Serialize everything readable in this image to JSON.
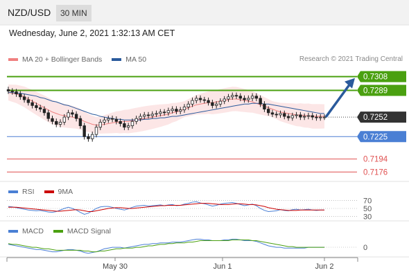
{
  "header": {
    "symbol": "NZD/USD",
    "timeframe": "30 MIN"
  },
  "datetime": "Wednesday, June 2, 2021 1:32:13 AM CET",
  "credit": "Research © 2021 Trading Central",
  "legend_main": [
    {
      "label": "MA 20 + Bollinger Bands",
      "color": "#f08080"
    },
    {
      "label": "MA 50",
      "color": "#2a5a9c"
    }
  ],
  "legend_rsi": [
    {
      "label": "RSI",
      "color": "#4a7fd4"
    },
    {
      "label": "9MA",
      "color": "#cc0000"
    }
  ],
  "legend_macd": [
    {
      "label": "MACD",
      "color": "#4a7fd4"
    },
    {
      "label": "MACD Signal",
      "color": "#4aa010"
    }
  ],
  "colors": {
    "resistance": "#4aa010",
    "support": "#4a7fd4",
    "lower": "#e05050",
    "price": "#333333",
    "arrow": "#2a5a9c"
  },
  "chart_data": {
    "type": "candlestick",
    "x_ticks": [
      "May 30",
      "Jun 1",
      "Jun 2"
    ],
    "price_levels": [
      {
        "value": 0.7308,
        "label": "0.7308",
        "kind": "resistance"
      },
      {
        "value": 0.7289,
        "label": "0.7289",
        "kind": "resistance"
      },
      {
        "value": 0.7252,
        "label": "0.7252",
        "kind": "current"
      },
      {
        "value": 0.7225,
        "label": "0.7225",
        "kind": "pivot"
      },
      {
        "value": 0.7194,
        "label": "0.7194",
        "kind": "support"
      },
      {
        "value": 0.7176,
        "label": "0.7176",
        "kind": "support"
      }
    ],
    "ylim": [
      0.7163,
      0.7322
    ],
    "price_series": [
      0.7288,
      0.7287,
      0.7284,
      0.728,
      0.7276,
      0.7272,
      0.7268,
      0.7265,
      0.7263,
      0.7258,
      0.725,
      0.7246,
      0.7242,
      0.7245,
      0.7252,
      0.7258,
      0.7256,
      0.725,
      0.724,
      0.7225,
      0.7222,
      0.7228,
      0.7238,
      0.7245,
      0.7248,
      0.725,
      0.7249,
      0.7246,
      0.7243,
      0.7238,
      0.724,
      0.7246,
      0.725,
      0.7253,
      0.7255,
      0.7254,
      0.7256,
      0.7257,
      0.7259,
      0.7258,
      0.7261,
      0.7263,
      0.726,
      0.7262,
      0.7266,
      0.727,
      0.7275,
      0.7278,
      0.7276,
      0.7275,
      0.7272,
      0.7268,
      0.727,
      0.7274,
      0.7277,
      0.728,
      0.7282,
      0.7281,
      0.7278,
      0.7276,
      0.7278,
      0.7281,
      0.7278,
      0.727,
      0.7263,
      0.7258,
      0.7256,
      0.7255,
      0.7257,
      0.7253,
      0.7251,
      0.7254,
      0.7255,
      0.7252,
      0.7253,
      0.7254,
      0.7252,
      0.7251,
      0.7252,
      0.7252
    ],
    "ma20": [
      0.7286,
      0.7285,
      0.7284,
      0.7282,
      0.728,
      0.7277,
      0.7274,
      0.7271,
      0.7268,
      0.7265,
      0.7262,
      0.7259,
      0.7257,
      0.7255,
      0.7254,
      0.7253,
      0.7252,
      0.7251,
      0.7249,
      0.7246,
      0.7244,
      0.7242,
      0.7241,
      0.7241,
      0.7242,
      0.7243,
      0.7244,
      0.7245,
      0.7245,
      0.7246,
      0.7246,
      0.7247,
      0.7248,
      0.7249,
      0.725,
      0.7251,
      0.7252,
      0.7253,
      0.7254,
      0.7255,
      0.7256,
      0.7258,
      0.7259,
      0.7261,
      0.7263,
      0.7265,
      0.7267,
      0.7269,
      0.727,
      0.7271,
      0.7272,
      0.7272,
      0.7273,
      0.7274,
      0.7275,
      0.7276,
      0.7277,
      0.7277,
      0.7276,
      0.7275,
      0.7274,
      0.7273,
      0.7271,
      0.7269,
      0.7267,
      0.7265,
      0.7263,
      0.7261,
      0.7259,
      0.7258,
      0.7257,
      0.7256,
      0.7255,
      0.7255,
      0.7254,
      0.7254,
      0.7253,
      0.7253,
      0.7253,
      0.7253
    ],
    "ma50": [
      0.7286,
      0.7286,
      0.7285,
      0.7285,
      0.7284,
      0.7283,
      0.7282,
      0.7281,
      0.7279,
      0.7278,
      0.7276,
      0.7274,
      0.7273,
      0.7271,
      0.7269,
      0.7268,
      0.7266,
      0.7264,
      0.7262,
      0.726,
      0.7258,
      0.7256,
      0.7255,
      0.7253,
      0.7252,
      0.7251,
      0.725,
      0.7249,
      0.7249,
      0.7248,
      0.7248,
      0.7248,
      0.7248,
      0.7248,
      0.7249,
      0.7249,
      0.725,
      0.725,
      0.7251,
      0.7251,
      0.7252,
      0.7253,
      0.7253,
      0.7254,
      0.7255,
      0.7256,
      0.7257,
      0.7258,
      0.7259,
      0.726,
      0.7261,
      0.7262,
      0.7263,
      0.7264,
      0.7265,
      0.7266,
      0.7267,
      0.7268,
      0.7269,
      0.727,
      0.727,
      0.7271,
      0.7271,
      0.7271,
      0.727,
      0.727,
      0.7269,
      0.7268,
      0.7267,
      0.7266,
      0.7265,
      0.7264,
      0.7263,
      0.7262,
      0.7261,
      0.726,
      0.7259,
      0.7258,
      0.7257,
      0.7257
    ],
    "rsi": {
      "ticks": [
        "70",
        "50",
        "30"
      ],
      "ylim": [
        20,
        80
      ],
      "values": [
        55,
        54,
        52,
        50,
        48,
        46,
        45,
        44,
        45,
        43,
        41,
        40,
        42,
        46,
        50,
        53,
        50,
        46,
        40,
        35,
        38,
        44,
        50,
        54,
        55,
        55,
        53,
        50,
        48,
        46,
        49,
        53,
        56,
        57,
        58,
        56,
        57,
        58,
        59,
        57,
        59,
        60,
        57,
        58,
        61,
        63,
        66,
        67,
        64,
        62,
        59,
        56,
        58,
        61,
        63,
        64,
        65,
        63,
        60,
        57,
        59,
        61,
        57,
        50,
        45,
        42,
        43,
        44,
        47,
        45,
        44,
        47,
        48,
        46,
        47,
        48,
        46,
        45,
        46,
        46
      ],
      "ma9": [
        53,
        53,
        53,
        52,
        51,
        50,
        49,
        48,
        47,
        46,
        45,
        44,
        43,
        43,
        44,
        45,
        46,
        47,
        46,
        44,
        42,
        42,
        44,
        46,
        48,
        50,
        51,
        52,
        52,
        51,
        50,
        50,
        51,
        52,
        53,
        54,
        55,
        56,
        57,
        57,
        58,
        58,
        58,
        58,
        59,
        60,
        61,
        62,
        63,
        63,
        63,
        62,
        61,
        60,
        60,
        60,
        61,
        62,
        62,
        61,
        60,
        60,
        59,
        57,
        55,
        52,
        50,
        48,
        47,
        46,
        45,
        45,
        45,
        46,
        46,
        46,
        46,
        46,
        46,
        46
      ]
    },
    "macd": {
      "ticks": [
        "0"
      ],
      "ylim": [
        -0.0014,
        0.0014
      ],
      "macd": [
        0.0002,
        0.0001,
        0.0,
        -0.0001,
        -0.0002,
        -0.0003,
        -0.0004,
        -0.0005,
        -0.0005,
        -0.0006,
        -0.0007,
        -0.0008,
        -0.0008,
        -0.0007,
        -0.0006,
        -0.0005,
        -0.0005,
        -0.0006,
        -0.0007,
        -0.0009,
        -0.001,
        -0.0009,
        -0.0008,
        -0.0006,
        -0.0004,
        -0.0003,
        -0.0002,
        -0.0002,
        -0.0002,
        -0.0003,
        -0.0002,
        -0.0001,
        0.0,
        0.0001,
        0.0002,
        0.0002,
        0.0003,
        0.0003,
        0.0004,
        0.0004,
        0.0004,
        0.0005,
        0.0005,
        0.0005,
        0.0006,
        0.0007,
        0.0008,
        0.0009,
        0.0009,
        0.0008,
        0.0008,
        0.0007,
        0.0007,
        0.0007,
        0.0008,
        0.0008,
        0.0009,
        0.0009,
        0.0008,
        0.0007,
        0.0007,
        0.0007,
        0.0006,
        0.0004,
        0.0002,
        0.0,
        -0.0001,
        -0.0002,
        -0.0002,
        -0.0003,
        -0.0003,
        -0.0003,
        -0.0003,
        -0.0003,
        -0.0003,
        -0.0002,
        -0.0002,
        -0.0002,
        -0.0002,
        -0.0002
      ],
      "signal": [
        0.0003,
        0.0002,
        0.0002,
        0.0001,
        0.0,
        -0.0001,
        -0.0002,
        -0.0002,
        -0.0003,
        -0.0004,
        -0.0004,
        -0.0005,
        -0.0006,
        -0.0006,
        -0.0006,
        -0.0006,
        -0.0006,
        -0.0006,
        -0.0006,
        -0.0007,
        -0.0007,
        -0.0008,
        -0.0008,
        -0.0007,
        -0.0007,
        -0.0006,
        -0.0005,
        -0.0004,
        -0.0004,
        -0.0003,
        -0.0003,
        -0.0003,
        -0.0002,
        -0.0002,
        -0.0001,
        0.0,
        0.0,
        0.0001,
        0.0002,
        0.0002,
        0.0003,
        0.0003,
        0.0004,
        0.0004,
        0.0004,
        0.0005,
        0.0005,
        0.0006,
        0.0007,
        0.0007,
        0.0007,
        0.0007,
        0.0007,
        0.0007,
        0.0007,
        0.0007,
        0.0008,
        0.0008,
        0.0008,
        0.0008,
        0.0008,
        0.0007,
        0.0007,
        0.0006,
        0.0005,
        0.0004,
        0.0003,
        0.0002,
        0.0001,
        0.0,
        -0.0001,
        -0.0001,
        -0.0002,
        -0.0002,
        -0.0002,
        -0.0002,
        -0.0002,
        -0.0002,
        -0.0002,
        -0.0002
      ]
    }
  }
}
